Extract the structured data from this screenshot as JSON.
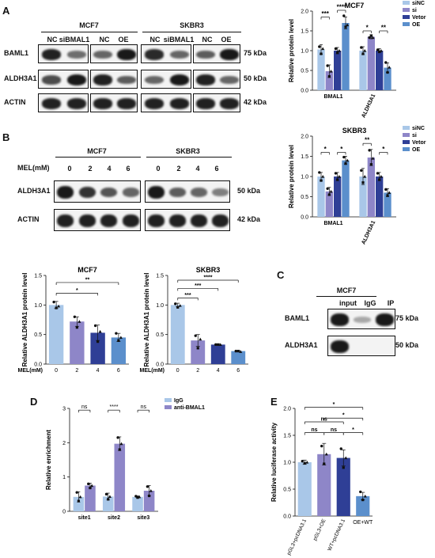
{
  "panels": {
    "A": {
      "letter": "A",
      "blot": {
        "groups": [
          "MCF7",
          "SKBR3"
        ],
        "lane_headers": [
          "NC",
          "siBMAL1",
          "NC",
          "OE",
          "NC",
          "siBMAL1",
          "NC",
          "OE"
        ],
        "rows": [
          {
            "name": "BAML1",
            "kda": "75 kDa",
            "intensities": [
              0.9,
              0.45,
              0.5,
              0.95,
              0.85,
              0.5,
              0.55,
              0.95
            ]
          },
          {
            "name": "ALDH3A1",
            "kda": "50 kDa",
            "intensities": [
              0.65,
              0.95,
              0.9,
              0.55,
              0.5,
              0.95,
              0.9,
              0.5
            ]
          },
          {
            "name": "ACTIN",
            "kda": "42 kDa",
            "intensities": [
              0.9,
              0.9,
              0.9,
              0.9,
              0.9,
              0.9,
              0.9,
              0.9
            ]
          }
        ]
      }
    },
    "B": {
      "letter": "B",
      "blot": {
        "groups": [
          "MCF7",
          "SKBR3"
        ],
        "mel_label": "MEL(mM)",
        "lane_headers": [
          "0",
          "2",
          "4",
          "6",
          "0",
          "2",
          "4",
          "6"
        ],
        "rows": [
          {
            "name": "ALDH3A1",
            "kda": "50 kDa",
            "intensities": [
              0.95,
              0.8,
              0.6,
              0.5,
              0.95,
              0.55,
              0.5,
              0.35
            ]
          },
          {
            "name": "ACTIN",
            "kda": "42 kDa",
            "intensities": [
              0.9,
              0.9,
              0.9,
              0.9,
              0.9,
              0.9,
              0.9,
              0.9
            ]
          }
        ]
      }
    },
    "C": {
      "letter": "C",
      "blot": {
        "group": "MCF7",
        "lane_headers": [
          "input",
          "IgG",
          "IP"
        ],
        "rows": [
          {
            "name": "BAML1",
            "kda": "75 kDa",
            "intensities": [
              0.95,
              0.1,
              0.95
            ]
          },
          {
            "name": "ALDH3A1",
            "kda": "50 kDa",
            "intensities": [
              0.95,
              0.0,
              0.0
            ]
          }
        ]
      }
    },
    "D": {
      "letter": "D"
    },
    "E": {
      "letter": "E"
    }
  },
  "chart_data": [
    {
      "id": "A-bar",
      "type": "bar",
      "title": "MCF7",
      "ylabel": "Relative protein level",
      "categories": [
        "BMAL1",
        "ALDH3A1"
      ],
      "ylim": [
        0,
        2.0
      ],
      "yticks": [
        "0.0",
        "0.5",
        "1.0",
        "1.5",
        "2.0"
      ],
      "colors": [
        "#a9c7e8",
        "#8e86c8",
        "#2f3f96",
        "#5b8fcc"
      ],
      "legend": [
        "siNC",
        "si",
        "Vetor",
        "OE"
      ],
      "series": [
        {
          "name": "siNC",
          "values": [
            1.03,
            1.0
          ],
          "err": [
            0.12,
            0.1
          ],
          "points": [
            [
              1.1,
              0.92,
              1.05
            ],
            [
              1.08,
              0.92,
              1.0
            ]
          ]
        },
        {
          "name": "si",
          "values": [
            0.48,
            1.35
          ],
          "err": [
            0.16,
            0.05
          ],
          "points": [
            [
              0.62,
              0.35,
              0.48
            ],
            [
              1.33,
              1.38,
              1.33
            ]
          ]
        },
        {
          "name": "Vetor",
          "values": [
            1.0,
            1.0
          ],
          "err": [
            0.08,
            0.05
          ],
          "points": [
            [
              1.05,
              0.95,
              1.0
            ],
            [
              1.02,
              0.97,
              1.0
            ]
          ]
        },
        {
          "name": "OE",
          "values": [
            1.7,
            0.57
          ],
          "err": [
            0.15,
            0.12
          ],
          "points": [
            [
              1.88,
              1.6,
              1.65
            ],
            [
              0.7,
              0.45,
              0.58
            ]
          ]
        }
      ],
      "significance": [
        {
          "cat": 0,
          "from": 0,
          "to": 1,
          "label": "***",
          "y": 1.85
        },
        {
          "cat": 0,
          "from": 2,
          "to": 3,
          "label": "****",
          "y": 2.02
        },
        {
          "cat": 1,
          "from": 0,
          "to": 1,
          "label": "*",
          "y": 1.5
        },
        {
          "cat": 1,
          "from": 2,
          "to": 3,
          "label": "**",
          "y": 1.5
        }
      ]
    },
    {
      "id": "B-bar",
      "type": "bar",
      "title": "SKBR3",
      "ylabel": "Relative protein level",
      "categories": [
        "BMAL1",
        "ALDH3A1"
      ],
      "ylim": [
        0,
        2.0
      ],
      "yticks": [
        "0.0",
        "0.5",
        "1.0",
        "1.5",
        "2.0"
      ],
      "colors": [
        "#a9c7e8",
        "#8e86c8",
        "#2f3f96",
        "#5b8fcc"
      ],
      "legend": [
        "siNC",
        "si",
        "Vetor",
        "OE"
      ],
      "series": [
        {
          "name": "siNC",
          "values": [
            1.0,
            1.0
          ],
          "err": [
            0.1,
            0.2
          ],
          "points": [
            [
              1.1,
              0.9,
              1.0
            ],
            [
              1.15,
              0.85,
              1.0
            ]
          ]
        },
        {
          "name": "si",
          "values": [
            0.63,
            1.47
          ],
          "err": [
            0.1,
            0.2
          ],
          "points": [
            [
              0.7,
              0.55,
              0.63
            ],
            [
              1.65,
              1.3,
              1.45
            ]
          ]
        },
        {
          "name": "Vetor",
          "values": [
            1.0,
            1.0
          ],
          "err": [
            0.1,
            0.1
          ],
          "points": [
            [
              1.08,
              0.92,
              1.0
            ],
            [
              1.08,
              0.92,
              1.0
            ]
          ]
        },
        {
          "name": "OE",
          "values": [
            1.4,
            0.6
          ],
          "err": [
            0.1,
            0.1
          ],
          "points": [
            [
              1.48,
              1.32,
              1.4
            ],
            [
              0.68,
              0.53,
              0.6
            ]
          ]
        }
      ],
      "significance": [
        {
          "cat": 0,
          "from": 0,
          "to": 1,
          "label": "*",
          "y": 1.6
        },
        {
          "cat": 0,
          "from": 2,
          "to": 3,
          "label": "*",
          "y": 1.6
        },
        {
          "cat": 1,
          "from": 0,
          "to": 1,
          "label": "**",
          "y": 1.82
        },
        {
          "cat": 1,
          "from": 2,
          "to": 3,
          "label": "*",
          "y": 1.6
        }
      ]
    },
    {
      "id": "B-mcf7",
      "type": "bar",
      "title": "MCF7",
      "ylabel": "Relative ALDH3A1 protein level",
      "xlabel": "MEL(mM)",
      "categories": [
        "0",
        "2",
        "4",
        "6"
      ],
      "ylim": [
        0,
        1.5
      ],
      "yticks": [
        "0.0",
        "0.5",
        "1.0",
        "1.5"
      ],
      "colors": [
        "#a9c7e8",
        "#8e86c8",
        "#2f3f96",
        "#5b8fcc"
      ],
      "values": [
        1.0,
        0.72,
        0.53,
        0.45
      ],
      "err": [
        0.06,
        0.08,
        0.13,
        0.07
      ],
      "points": [
        [
          1.05,
          0.95,
          0.98
        ],
        [
          0.8,
          0.62,
          0.72
        ],
        [
          0.65,
          0.38,
          0.55
        ],
        [
          0.52,
          0.4,
          0.45
        ]
      ],
      "significance": [
        {
          "from": 0,
          "to": 3,
          "label": "**",
          "y": 1.38
        },
        {
          "from": 0,
          "to": 2,
          "label": "*",
          "y": 1.2
        }
      ]
    },
    {
      "id": "B-skbr3",
      "type": "bar",
      "title": "SKBR3",
      "ylabel": "Relative ALDH3A1 protein level",
      "xlabel": "MEL(mM)",
      "categories": [
        "0",
        "2",
        "4",
        "6"
      ],
      "ylim": [
        0,
        1.5
      ],
      "yticks": [
        "0.0",
        "0.5",
        "1.0",
        "1.5"
      ],
      "colors": [
        "#a9c7e8",
        "#8e86c8",
        "#2f3f96",
        "#5b8fcc"
      ],
      "values": [
        1.0,
        0.4,
        0.33,
        0.22
      ],
      "err": [
        0.03,
        0.1,
        0.01,
        0.01
      ],
      "points": [
        [
          1.02,
          0.96,
          0.99
        ],
        [
          0.48,
          0.27,
          0.42
        ],
        [
          0.33,
          0.33,
          0.33
        ],
        [
          0.22,
          0.22,
          0.21
        ]
      ],
      "significance": [
        {
          "from": 0,
          "to": 3,
          "label": "****",
          "y": 1.42
        },
        {
          "from": 0,
          "to": 2,
          "label": "***",
          "y": 1.28
        },
        {
          "from": 0,
          "to": 1,
          "label": "***",
          "y": 1.12
        }
      ]
    },
    {
      "id": "D-bar",
      "type": "bar",
      "ylabel": "Relative enrichment",
      "categories": [
        "site1",
        "site2",
        "site3"
      ],
      "ylim": [
        0,
        3
      ],
      "yticks": [
        "0",
        "1",
        "2",
        "3"
      ],
      "colors": [
        "#a9c7e8",
        "#8e86c8"
      ],
      "legend": [
        "IgG",
        "anti-BMAL1"
      ],
      "series": [
        {
          "name": "IgG",
          "values": [
            0.42,
            0.43,
            0.42
          ],
          "err": [
            0.15,
            0.1,
            0.03
          ],
          "points": [
            [
              0.55,
              0.3,
              0.42
            ],
            [
              0.5,
              0.35,
              0.43
            ],
            [
              0.44,
              0.4,
              0.42
            ]
          ]
        },
        {
          "name": "anti-BMAL1",
          "values": [
            0.75,
            1.97,
            0.6
          ],
          "err": [
            0.07,
            0.2,
            0.15
          ],
          "points": [
            [
              0.8,
              0.68,
              0.75
            ],
            [
              2.15,
              1.8,
              1.97
            ],
            [
              0.72,
              0.45,
              0.6
            ]
          ]
        }
      ],
      "significance": [
        {
          "cat": 0,
          "label": "ns",
          "y": 2.95
        },
        {
          "cat": 1,
          "label": "****",
          "y": 2.95
        },
        {
          "cat": 2,
          "label": "ns",
          "y": 2.95
        }
      ]
    },
    {
      "id": "E-bar",
      "type": "bar",
      "ylabel": "Relative luciferase activity",
      "categories": [
        "pGL3+pcDNA3.1",
        "pGL3+OE",
        "WT+pcDNA3.1",
        "OE+WT"
      ],
      "ylim": [
        0,
        2.0
      ],
      "yticks": [
        "0.0",
        "0.5",
        "1.0",
        "1.5",
        "2.0"
      ],
      "colors": [
        "#a9c7e8",
        "#8e86c8",
        "#2f3f96",
        "#5b8fcc"
      ],
      "values": [
        1.0,
        1.15,
        1.08,
        0.37
      ],
      "err": [
        0.04,
        0.2,
        0.15,
        0.07
      ],
      "points": [
        [
          1.02,
          0.98,
          1.0
        ],
        [
          1.3,
          0.97,
          1.15
        ],
        [
          1.25,
          0.9,
          1.08
        ],
        [
          0.45,
          0.3,
          0.37
        ]
      ],
      "significance": [
        {
          "from": 0,
          "to": 1,
          "label": "ns",
          "y": 1.55
        },
        {
          "from": 1,
          "to": 2,
          "label": "ns",
          "y": 1.55
        },
        {
          "from": 0,
          "to": 2,
          "label": "ns",
          "y": 1.75
        },
        {
          "from": 2,
          "to": 3,
          "label": "*",
          "y": 1.55
        },
        {
          "from": 1,
          "to": 3,
          "label": "*",
          "y": 1.82
        },
        {
          "from": 0,
          "to": 3,
          "label": "*",
          "y": 2.02
        }
      ]
    }
  ]
}
